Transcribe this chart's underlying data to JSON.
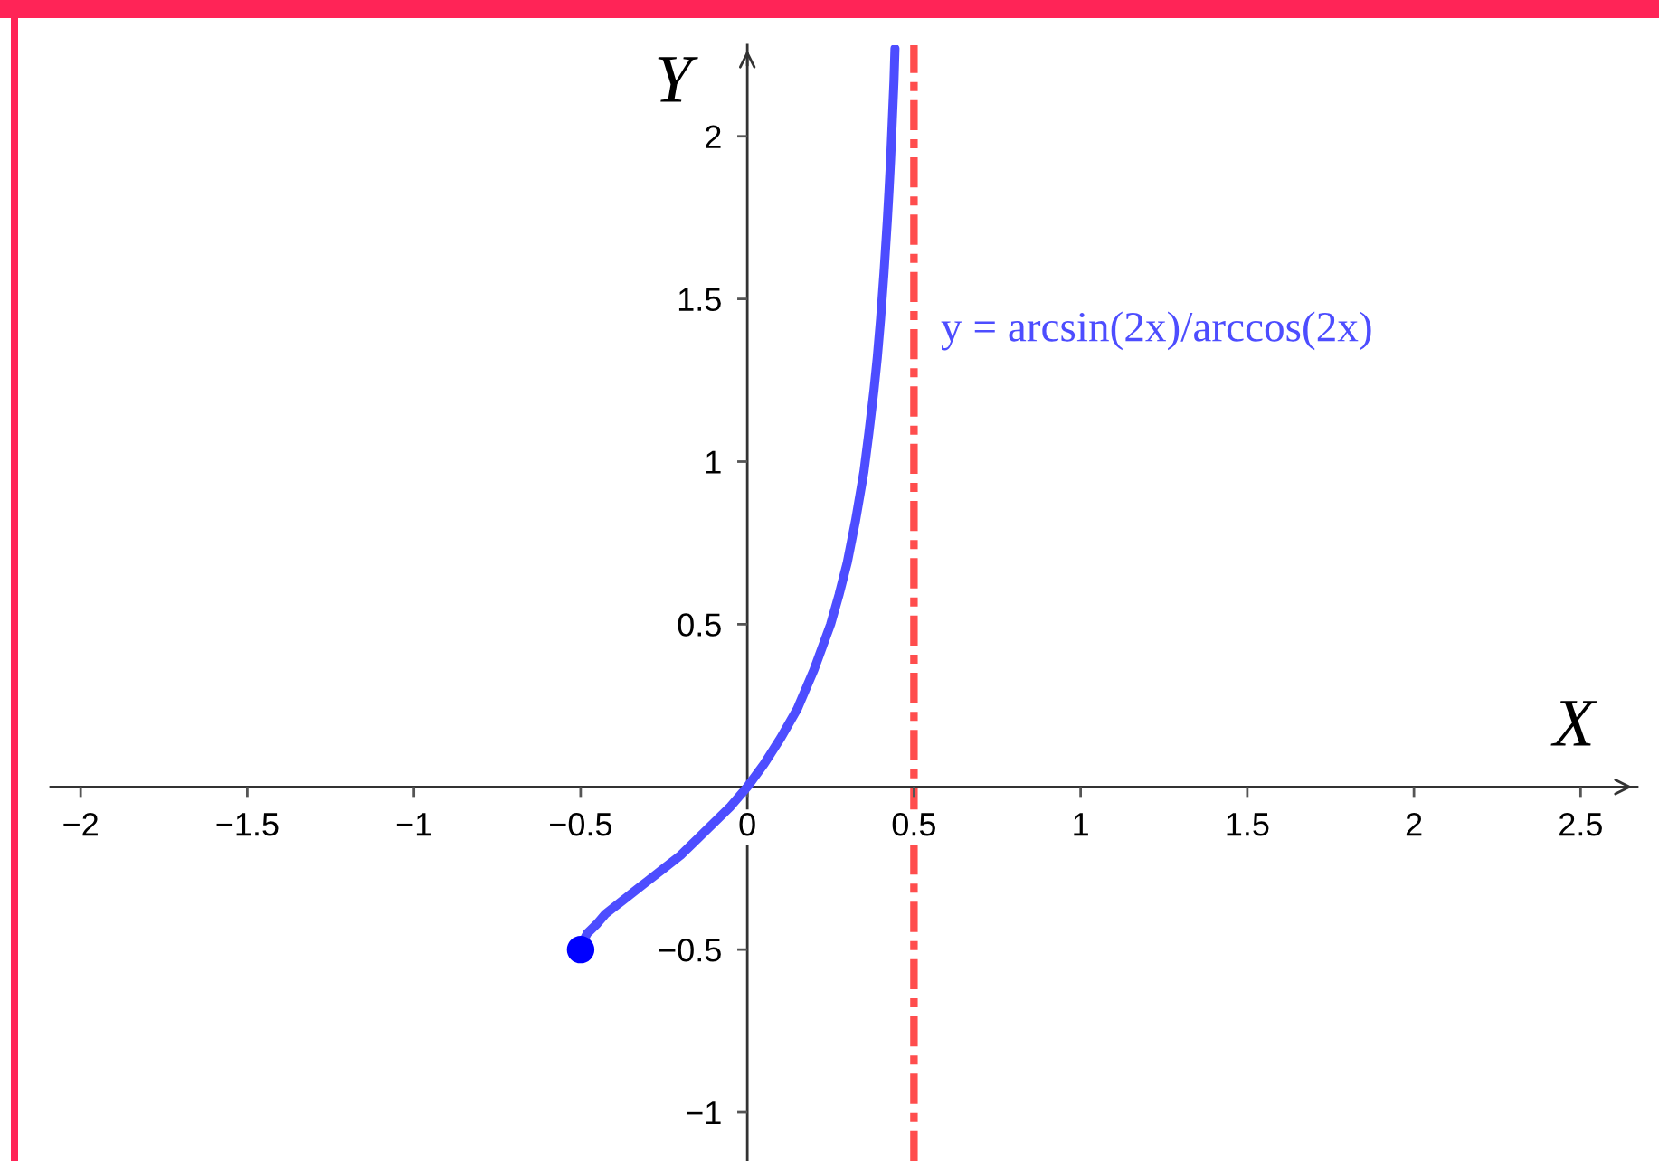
{
  "chart_data": {
    "type": "line",
    "xlabel": "X",
    "ylabel": "Y",
    "xlim": [
      -2.09,
      2.67
    ],
    "ylim": [
      -1.15,
      2.28
    ],
    "xticks": [
      {
        "value": -2,
        "label": "−2"
      },
      {
        "value": -1.5,
        "label": "−1.5"
      },
      {
        "value": -1,
        "label": "−1"
      },
      {
        "value": -0.5,
        "label": "−0.5"
      },
      0,
      0.5,
      1,
      1.5,
      2,
      2.5
    ],
    "yticks": [
      {
        "value": -1,
        "label": "−1"
      },
      {
        "value": -0.5,
        "label": "−0.5"
      },
      0.5,
      1,
      1.5,
      2
    ],
    "series": [
      {
        "name": "y = arcsin(2x)/arccos(2x)",
        "color": "#4d4dff",
        "x": [
          -0.5,
          -0.499,
          -0.495,
          -0.49,
          -0.48,
          -0.47,
          -0.45,
          -0.425,
          -0.4,
          -0.375,
          -0.35,
          -0.325,
          -0.3,
          -0.25,
          -0.2,
          -0.15,
          -0.1,
          -0.05,
          0,
          0.05,
          0.1,
          0.15,
          0.2,
          0.25,
          0.275,
          0.3,
          0.325,
          0.35,
          0.365,
          0.38,
          0.39,
          0.4,
          0.41,
          0.42,
          0.425,
          0.43,
          0.435,
          0.44,
          0.443
        ],
        "values": [
          -0.5,
          -0.49,
          -0.48,
          -0.47,
          -0.45,
          -0.44,
          -0.42,
          -0.39,
          -0.37,
          -0.35,
          -0.33,
          -0.31,
          -0.29,
          -0.25,
          -0.21,
          -0.16,
          -0.11,
          -0.06,
          0,
          0.07,
          0.15,
          0.24,
          0.36,
          0.5,
          0.59,
          0.69,
          0.82,
          0.97,
          1.09,
          1.22,
          1.32,
          1.44,
          1.58,
          1.74,
          1.83,
          1.93,
          2.05,
          2.17,
          2.27
        ]
      },
      {
        "type": "scatter",
        "color": "#0000ff",
        "marker": "circle",
        "x": [
          -0.5
        ],
        "values": [
          -0.5
        ]
      }
    ],
    "ref_lines": [
      {
        "axis": "x",
        "value": 0.5,
        "color": "#ff4d4d",
        "line_style": "dashdot"
      }
    ]
  }
}
